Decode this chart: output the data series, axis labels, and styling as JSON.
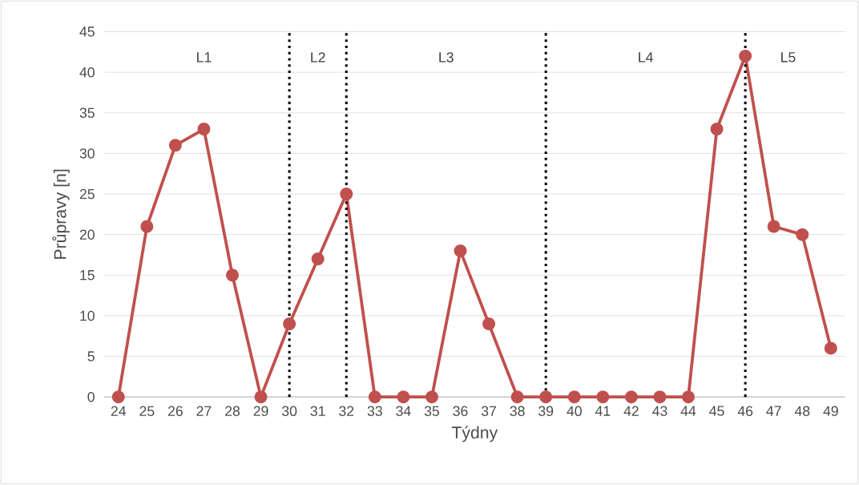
{
  "chart_data": {
    "type": "line",
    "xlabel": "Týdny",
    "ylabel": "Průpravy [n]",
    "x": [
      24,
      25,
      26,
      27,
      28,
      29,
      30,
      31,
      32,
      33,
      34,
      35,
      36,
      37,
      38,
      39,
      40,
      41,
      42,
      43,
      44,
      45,
      46,
      47,
      48,
      49
    ],
    "series": [
      {
        "color": "#c0504d",
        "values": [
          0,
          21,
          31,
          33,
          15,
          0,
          9,
          17,
          25,
          0,
          0,
          0,
          18,
          9,
          0,
          0,
          0,
          0,
          0,
          0,
          0,
          33,
          42,
          21,
          20,
          6
        ]
      }
    ],
    "xlim": [
      23.5,
      49.5
    ],
    "xticks": [
      24,
      25,
      26,
      27,
      28,
      29,
      30,
      31,
      32,
      33,
      34,
      35,
      36,
      37,
      38,
      39,
      40,
      41,
      42,
      43,
      44,
      45,
      46,
      47,
      48,
      49
    ],
    "ylim": [
      0,
      45
    ],
    "yticks": [
      0,
      5,
      10,
      15,
      20,
      25,
      30,
      35,
      40,
      45
    ],
    "grid": "y",
    "marker": "circle",
    "ref_lines": [
      {
        "axis": "x",
        "value": 30,
        "color": "#000000",
        "line_style": "dotted"
      },
      {
        "axis": "x",
        "value": 32,
        "color": "#000000",
        "line_style": "dotted"
      },
      {
        "axis": "x",
        "value": 39,
        "color": "#000000",
        "line_style": "dotted"
      },
      {
        "axis": "x",
        "value": 46,
        "color": "#000000",
        "line_style": "dotted"
      }
    ],
    "annotations": [
      "L1",
      "L2",
      "L3",
      "L4",
      "L5"
    ]
  }
}
